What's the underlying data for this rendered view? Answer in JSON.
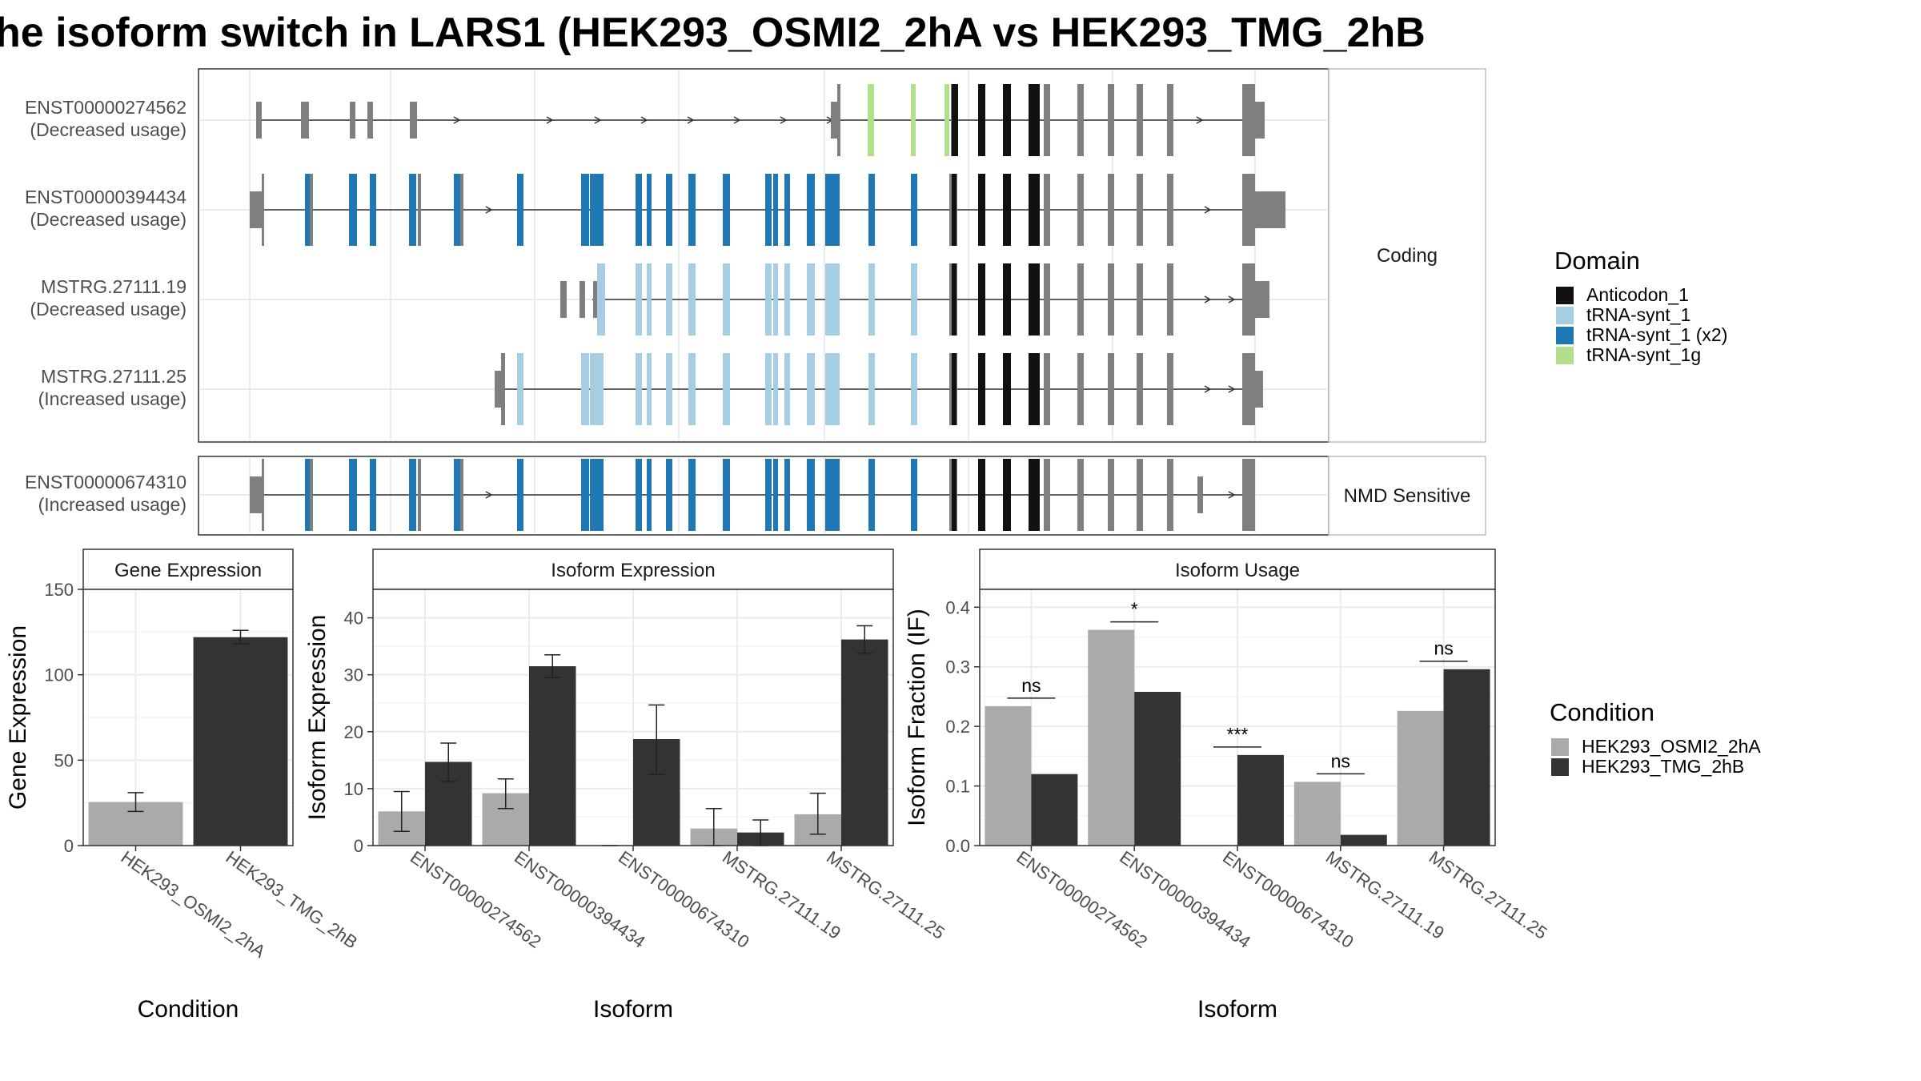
{
  "title": "he isoform switch in LARS1 (HEK293_OSMI2_2hA vs HEK293_TMG_2hB",
  "colors": {
    "cond_a": "#aaaaaa",
    "cond_b": "#333333",
    "Anticodon_1": "#111111",
    "tRNA-synt_1": "#a6cee3",
    "tRNA-synt_1 (x2)": "#1f78b4",
    "tRNA-synt_1g": "#b2df8a",
    "none": "#7f7f7f"
  },
  "transcripts": {
    "coding_label": "Coding",
    "nmd_label": "NMD Sensitive",
    "rows": [
      {
        "id": "ENST00000274562",
        "usage": "(Decreased usage)"
      },
      {
        "id": "ENST00000394434",
        "usage": "(Decreased usage)"
      },
      {
        "id": "MSTRG.27111.19",
        "usage": "(Decreased usage)"
      },
      {
        "id": "MSTRG.27111.25",
        "usage": "(Increased usage)"
      },
      {
        "id": "ENST00000674310",
        "usage": "(Increased usage)"
      }
    ]
  },
  "legend_domain": {
    "title": "Domain",
    "items": [
      "Anticodon_1",
      "tRNA-synt_1",
      "tRNA-synt_1 (x2)",
      "tRNA-synt_1g"
    ]
  },
  "legend_condition": {
    "title": "Condition",
    "items": [
      "HEK293_OSMI2_2hA",
      "HEK293_TMG_2hB"
    ]
  },
  "chart_data": [
    {
      "type": "bar",
      "title": "Gene Expression",
      "xlabel": "Condition",
      "ylabel": "Gene Expression",
      "categories": [
        "HEK293_OSMI2_2hA",
        "HEK293_TMG_2hB"
      ],
      "values": [
        25.5,
        122
      ],
      "errors": [
        [
          20,
          31
        ],
        [
          118,
          126
        ]
      ],
      "yticks": [
        0,
        50,
        100,
        150
      ],
      "ylim": [
        0,
        150
      ],
      "grid": true
    },
    {
      "type": "bar",
      "title": "Isoform Expression",
      "xlabel": "Isoform",
      "ylabel": "Isoform Expression",
      "categories": [
        "ENST00000274562",
        "ENST00000394434",
        "ENST00000674310",
        "MSTRG.27111.19",
        "MSTRG.27111.25"
      ],
      "series": [
        {
          "name": "HEK293_OSMI2_2hA",
          "values": [
            6.0,
            9.2,
            0.0,
            3.0,
            5.5
          ],
          "errors": [
            [
              2.5,
              9.5
            ],
            [
              6.5,
              11.7
            ],
            [
              0,
              0
            ],
            [
              0,
              6.5
            ],
            [
              2,
              9.2
            ]
          ]
        },
        {
          "name": "HEK293_TMG_2hB",
          "values": [
            14.7,
            31.5,
            18.7,
            2.3,
            36.2
          ],
          "errors": [
            [
              11.3,
              18
            ],
            [
              29.5,
              33.5
            ],
            [
              12.5,
              24.7
            ],
            [
              0,
              4.5
            ],
            [
              33.8,
              38.6
            ]
          ]
        }
      ],
      "yticks": [
        0,
        10,
        20,
        30,
        40
      ],
      "ylim": [
        0,
        45
      ],
      "grid": true
    },
    {
      "type": "bar",
      "title": "Isoform Usage",
      "xlabel": "Isoform",
      "ylabel": "Isoform Fraction (IF)",
      "categories": [
        "ENST00000274562",
        "ENST00000394434",
        "ENST00000674310",
        "MSTRG.27111.19",
        "MSTRG.27111.25"
      ],
      "series": [
        {
          "name": "HEK293_OSMI2_2hA",
          "values": [
            0.234,
            0.362,
            0.0,
            0.107,
            0.226
          ]
        },
        {
          "name": "HEK293_TMG_2hB",
          "values": [
            0.12,
            0.258,
            0.152,
            0.018,
            0.296
          ]
        }
      ],
      "significance": [
        "ns",
        "*",
        "***",
        "ns",
        "ns"
      ],
      "yticks": [
        0.0,
        0.1,
        0.2,
        0.3,
        0.4
      ],
      "ylim": [
        0,
        0.43
      ],
      "grid": true
    }
  ]
}
